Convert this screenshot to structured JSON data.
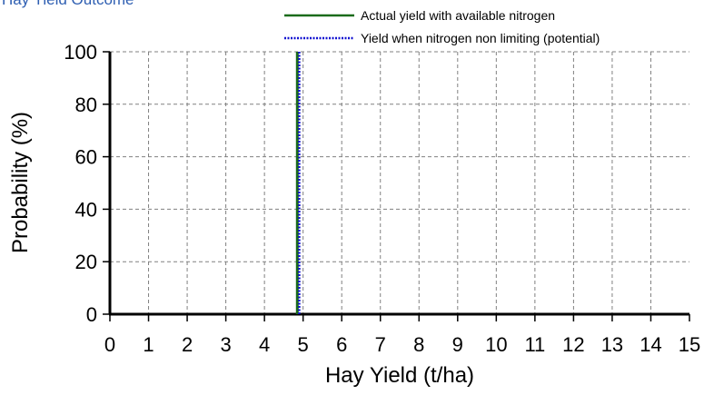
{
  "title": "Hay Yield Outcome",
  "chart_data": {
    "type": "line",
    "title": "Hay Yield Outcome",
    "xlabel": "Hay Yield (t/ha)",
    "ylabel": "Probability (%)",
    "xlim": [
      0,
      15
    ],
    "ylim": [
      0,
      100
    ],
    "xticks": [
      "0",
      "1",
      "2",
      "3",
      "4",
      "5",
      "6",
      "7",
      "8",
      "9",
      "10",
      "11",
      "12",
      "13",
      "14",
      "15"
    ],
    "yticks": [
      "0",
      "20",
      "40",
      "60",
      "80",
      "100"
    ],
    "grid": true,
    "legend_position": "top-right",
    "series": [
      {
        "name": "Actual yield with available nitrogen",
        "color": "#1a6b1a",
        "style": "solid",
        "x": [
          4.85,
          4.85
        ],
        "y": [
          0,
          100
        ]
      },
      {
        "name": "Yield when nitrogen non limiting (potential)",
        "color": "#1010d0",
        "style": "dotted",
        "x": [
          4.9,
          4.9
        ],
        "y": [
          0,
          100
        ]
      }
    ]
  }
}
